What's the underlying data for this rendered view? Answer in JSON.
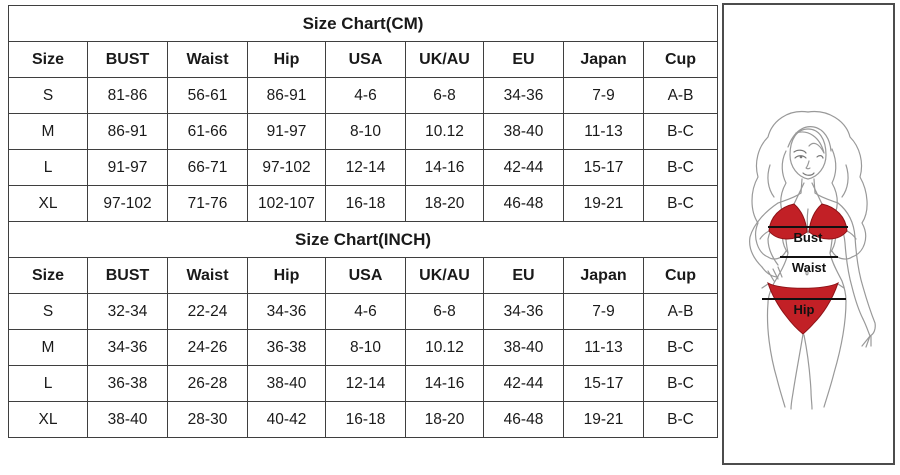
{
  "chart_data": [
    {
      "type": "table",
      "title": "Size Chart(CM)",
      "columns": [
        "Size",
        "BUST",
        "Waist",
        "Hip",
        "USA",
        "UK/AU",
        "EU",
        "Japan",
        "Cup"
      ],
      "rows": [
        [
          "S",
          "81-86",
          "56-61",
          "86-91",
          "4-6",
          "6-8",
          "34-36",
          "7-9",
          "A-B"
        ],
        [
          "M",
          "86-91",
          "61-66",
          "91-97",
          "8-10",
          "10.12",
          "38-40",
          "11-13",
          "B-C"
        ],
        [
          "L",
          "91-97",
          "66-71",
          "97-102",
          "12-14",
          "14-16",
          "42-44",
          "15-17",
          "B-C"
        ],
        [
          "XL",
          "97-102",
          "71-76",
          "102-107",
          "16-18",
          "18-20",
          "46-48",
          "19-21",
          "B-C"
        ]
      ]
    },
    {
      "type": "table",
      "title": "Size Chart(INCH)",
      "columns": [
        "Size",
        "BUST",
        "Waist",
        "Hip",
        "USA",
        "UK/AU",
        "EU",
        "Japan",
        "Cup"
      ],
      "rows": [
        [
          "S",
          "32-34",
          "22-24",
          "34-36",
          "4-6",
          "6-8",
          "34-36",
          "7-9",
          "A-B"
        ],
        [
          "M",
          "34-36",
          "24-26",
          "36-38",
          "8-10",
          "10.12",
          "38-40",
          "11-13",
          "B-C"
        ],
        [
          "L",
          "36-38",
          "26-28",
          "38-40",
          "12-14",
          "14-16",
          "42-44",
          "15-17",
          "B-C"
        ],
        [
          "XL",
          "38-40",
          "28-30",
          "40-42",
          "16-18",
          "18-20",
          "46-48",
          "19-21",
          "B-C"
        ]
      ]
    }
  ],
  "figure": {
    "bust_label": "Bust",
    "waist_label": "Waist",
    "hip_label": "Hip",
    "bikini_color": "#c22026"
  },
  "colors": {
    "table_border": "#3f3f3f",
    "text": "#1a1a1a",
    "measurement_line": "#111111",
    "line_art": "#999999"
  }
}
